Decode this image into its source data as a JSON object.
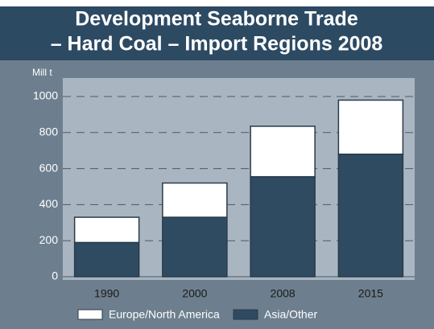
{
  "chart_data": {
    "type": "bar",
    "stacked": true,
    "title": [
      "Development Seaborne Trade",
      "– Hard Coal – Import Regions 2008"
    ],
    "y_axis_label": "Mill t",
    "categories": [
      "1990",
      "2000",
      "2008",
      "2015"
    ],
    "series": [
      {
        "name": "Europe/North America",
        "color": "#ffffff",
        "values": [
          140,
          190,
          280,
          300
        ]
      },
      {
        "name": "Asia/Other",
        "color": "#2e4b62",
        "values": [
          190,
          330,
          555,
          680
        ]
      }
    ],
    "ylim": [
      0,
      1000
    ],
    "yticks": [
      0,
      200,
      400,
      600,
      800,
      1000
    ],
    "grid": true
  }
}
